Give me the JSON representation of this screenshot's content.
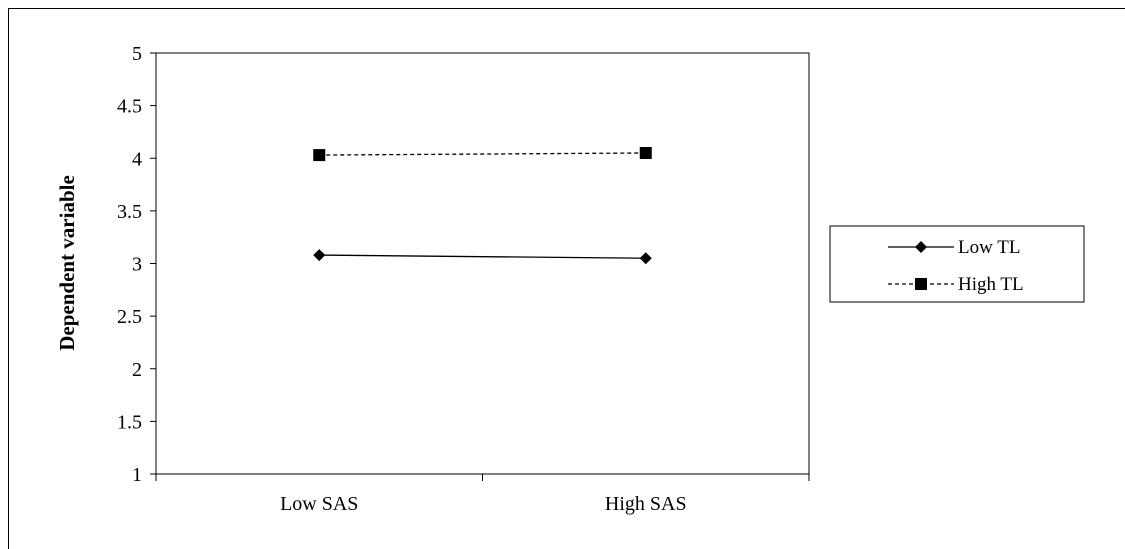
{
  "chart_data": {
    "type": "line",
    "categories": [
      "Low SAS",
      "High SAS"
    ],
    "series": [
      {
        "name": "Low TL",
        "values": [
          3.08,
          3.05
        ],
        "line_style": "solid",
        "marker": "diamond",
        "color": "#000000"
      },
      {
        "name": "High TL",
        "values": [
          4.03,
          4.05
        ],
        "line_style": "dashed",
        "marker": "square",
        "color": "#000000"
      }
    ],
    "title": "",
    "xlabel": "",
    "ylabel": "Dependent variable",
    "ylim": [
      1,
      5
    ],
    "yticks": [
      "1",
      "1.5",
      "2",
      "2.5",
      "3",
      "3.5",
      "4",
      "4.5",
      "5"
    ],
    "grid": false,
    "legend_position": "right"
  }
}
